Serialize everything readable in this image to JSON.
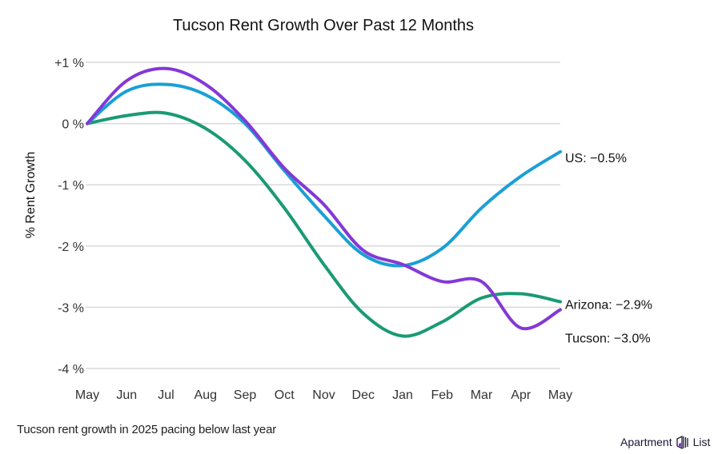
{
  "chart_data": {
    "type": "line",
    "title": "Tucson Rent Growth Over Past 12 Months",
    "xlabel": "",
    "ylabel": "% Rent Growth",
    "categories": [
      "May",
      "Jun",
      "Jul",
      "Aug",
      "Sep",
      "Oct",
      "Nov",
      "Dec",
      "Jan",
      "Feb",
      "Mar",
      "Apr",
      "May"
    ],
    "ylim": [
      -4,
      1
    ],
    "yticks": [
      {
        "value": 1,
        "label": "+1 %"
      },
      {
        "value": 0,
        "label": "0 %"
      },
      {
        "value": -1,
        "label": "-1 %"
      },
      {
        "value": -2,
        "label": "-2 %"
      },
      {
        "value": -3,
        "label": "-3 %"
      },
      {
        "value": -4,
        "label": "-4 %"
      }
    ],
    "grid": true,
    "legend": "end-of-line labels (right)",
    "series": [
      {
        "name": "Arizona",
        "color": "#1a9a74",
        "end_label": "Arizona: −2.9%",
        "values": [
          0,
          0.13,
          0.17,
          -0.08,
          -0.6,
          -1.38,
          -2.3,
          -3.1,
          -3.47,
          -3.24,
          -2.85,
          -2.78,
          -2.91
        ]
      },
      {
        "name": "US",
        "color": "#1a9fd6",
        "end_label": "US: −0.5%",
        "values": [
          0,
          0.53,
          0.64,
          0.47,
          0.0,
          -0.77,
          -1.5,
          -2.14,
          -2.32,
          -2.04,
          -1.38,
          -0.86,
          -0.46
        ]
      },
      {
        "name": "Tucson",
        "color": "#8438d6",
        "end_label": "Tucson: −3.0%",
        "values": [
          0,
          0.7,
          0.9,
          0.64,
          0.05,
          -0.73,
          -1.32,
          -2.07,
          -2.3,
          -2.58,
          -2.58,
          -3.34,
          -3.04
        ]
      }
    ]
  },
  "footer": {
    "caption": "Tucson rent growth in 2025 pacing below last year",
    "brand_left": "Apartment",
    "brand_right": "List",
    "brand_icon": "apartment-list-logo-icon"
  }
}
